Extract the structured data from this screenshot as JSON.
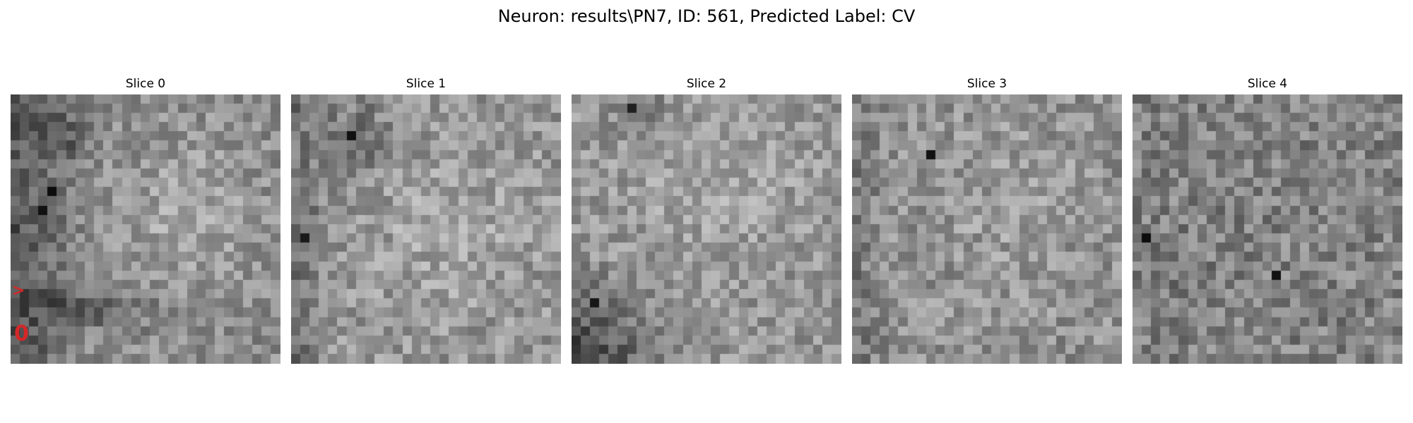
{
  "figure": {
    "title": "Neuron: results\\PN7, ID: 561, Predicted Label: CV"
  },
  "panels": [
    {
      "title": "Slice 0",
      "dark_regions": "left edge and lower-left band",
      "annotations": [
        ">",
        "0"
      ]
    },
    {
      "title": "Slice 1",
      "dark_regions": "upper-left cluster and left edge"
    },
    {
      "title": "Slice 2",
      "dark_regions": "lower-left corner gradient"
    },
    {
      "title": "Slice 3",
      "dark_regions": "isolated dark pixel upper-left"
    },
    {
      "title": "Slice 4",
      "dark_regions": "scattered, slightly darker left-center"
    }
  ],
  "image": {
    "grid": "29x29 grayscale pixel mosaic per slice",
    "colormap": "gray"
  },
  "colors": {
    "background": "#ffffff",
    "annotation": "#d62728"
  }
}
